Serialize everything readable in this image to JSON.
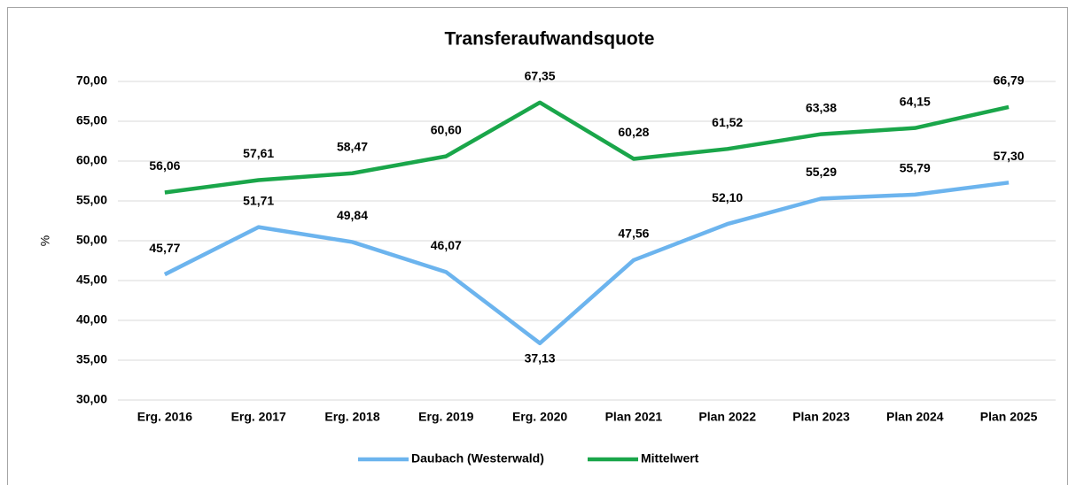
{
  "chart_data": {
    "type": "line",
    "title": "Transferaufwandsquote",
    "y_label": "%",
    "categories": [
      "Erg. 2016",
      "Erg. 2017",
      "Erg. 2018",
      "Erg. 2019",
      "Erg. 2020",
      "Plan 2021",
      "Plan 2022",
      "Plan 2023",
      "Plan 2024",
      "Plan 2025"
    ],
    "series": [
      {
        "name": "Daubach (Westerwald)",
        "color": "#6cb4ee",
        "values": [
          45.77,
          51.71,
          49.84,
          46.07,
          37.13,
          47.56,
          52.1,
          55.29,
          55.79,
          57.3
        ],
        "value_labels": [
          "45,77",
          "51,71",
          "49,84",
          "46,07",
          "37,13",
          "47,56",
          "52,10",
          "55,29",
          "55,79",
          "57,30"
        ]
      },
      {
        "name": "Mittelwert",
        "color": "#1aa64a",
        "values": [
          56.06,
          57.61,
          58.47,
          60.6,
          67.35,
          60.28,
          61.52,
          63.38,
          64.15,
          66.79
        ],
        "value_labels": [
          "56,06",
          "57,61",
          "58,47",
          "60,60",
          "67,35",
          "60,28",
          "61,52",
          "63,38",
          "64,15",
          "66,79"
        ]
      }
    ],
    "ylim": [
      30,
      70
    ],
    "yticks": [
      {
        "value": 30,
        "label": "30,00"
      },
      {
        "value": 35,
        "label": "35,00"
      },
      {
        "value": 40,
        "label": "40,00"
      },
      {
        "value": 45,
        "label": "45,00"
      },
      {
        "value": 50,
        "label": "50,00"
      },
      {
        "value": 55,
        "label": "55,00"
      },
      {
        "value": 60,
        "label": "60,00"
      },
      {
        "value": 65,
        "label": "65,00"
      },
      {
        "value": 70,
        "label": "70,00"
      }
    ],
    "grid": true,
    "legend": "bottom"
  }
}
